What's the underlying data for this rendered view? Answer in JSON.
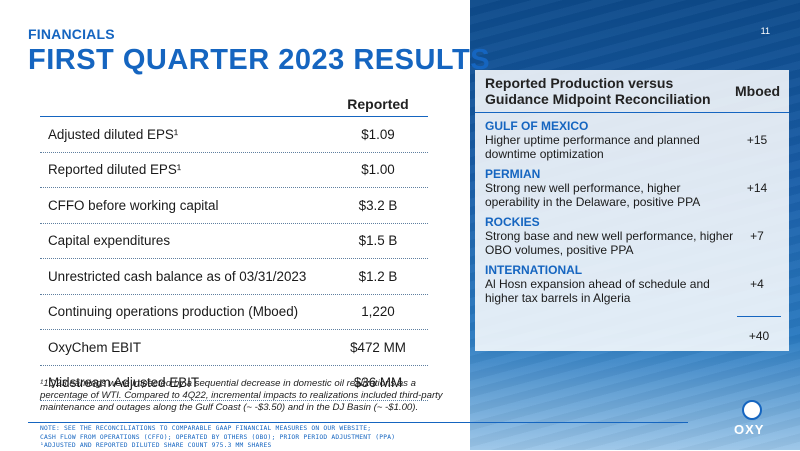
{
  "header": {
    "eyebrow": "FINANCIALS",
    "title": "FIRST QUARTER 2023 RESULTS",
    "page_number": "11"
  },
  "results": {
    "column_header": "Reported",
    "rows": [
      {
        "label": "Adjusted diluted EPS¹",
        "value": "$1.09"
      },
      {
        "label": "Reported diluted EPS¹",
        "value": "$1.00"
      },
      {
        "label": "CFFO before working capital",
        "value": "$3.2 B"
      },
      {
        "label": "Capital expenditures",
        "value": "$1.5 B"
      },
      {
        "label": "Unrestricted cash balance as of 03/31/2023",
        "value": "$1.2 B"
      },
      {
        "label": "Continuing operations production (Mboed)",
        "value": "1,220"
      },
      {
        "label": "OxyChem EBIT",
        "value": "$472 MM"
      },
      {
        "label": "Midstream Adjusted EBIT",
        "value": "$36 MM"
      }
    ]
  },
  "footnote": "¹1Q23 earnings were impacted by a sequential decrease in domestic oil realizations as a percentage of WTI. Compared to 4Q22, incremental impacts to realizations included third-party maintenance and outages along the Gulf Coast (~ -$3.50) and in the DJ Basin (~ -$1.00).",
  "note": {
    "line1": "NOTE: SEE THE RECONCILIATIONS TO COMPARABLE GAAP FINANCIAL MEASURES ON OUR WEBSITE;",
    "line2": "CASH FLOW FROM OPERATIONS (CFFO); OPERATED BY OTHERS (OBO); PRIOR PERIOD ADJUSTMENT (PPA)",
    "line3": "¹ADJUSTED AND REPORTED DILUTED SHARE COUNT 975.3 MM SHARES"
  },
  "reconciliation": {
    "heading_line1": "Reported Production versus",
    "heading_line2": "Guidance Midpoint Reconciliation",
    "unit_header": "Mboed",
    "regions": [
      {
        "name": "GULF OF MEXICO",
        "text": "Higher uptime performance and planned downtime optimization",
        "value": "+15"
      },
      {
        "name": "PERMIAN",
        "text": "Strong new well performance, higher operability in the Delaware, positive PPA",
        "value": "+14"
      },
      {
        "name": "ROCKIES",
        "text": "Strong base and new well performance, higher OBO volumes, positive PPA",
        "value": "+7"
      },
      {
        "name": "INTERNATIONAL",
        "text": "Al Hosn expansion ahead of schedule and higher tax barrels in Algeria",
        "value": "+4"
      }
    ],
    "total": "+40"
  },
  "logo": {
    "text": "OXY"
  },
  "colors": {
    "accent": "#1565c0",
    "panel_bg": "#0d4a8a"
  }
}
